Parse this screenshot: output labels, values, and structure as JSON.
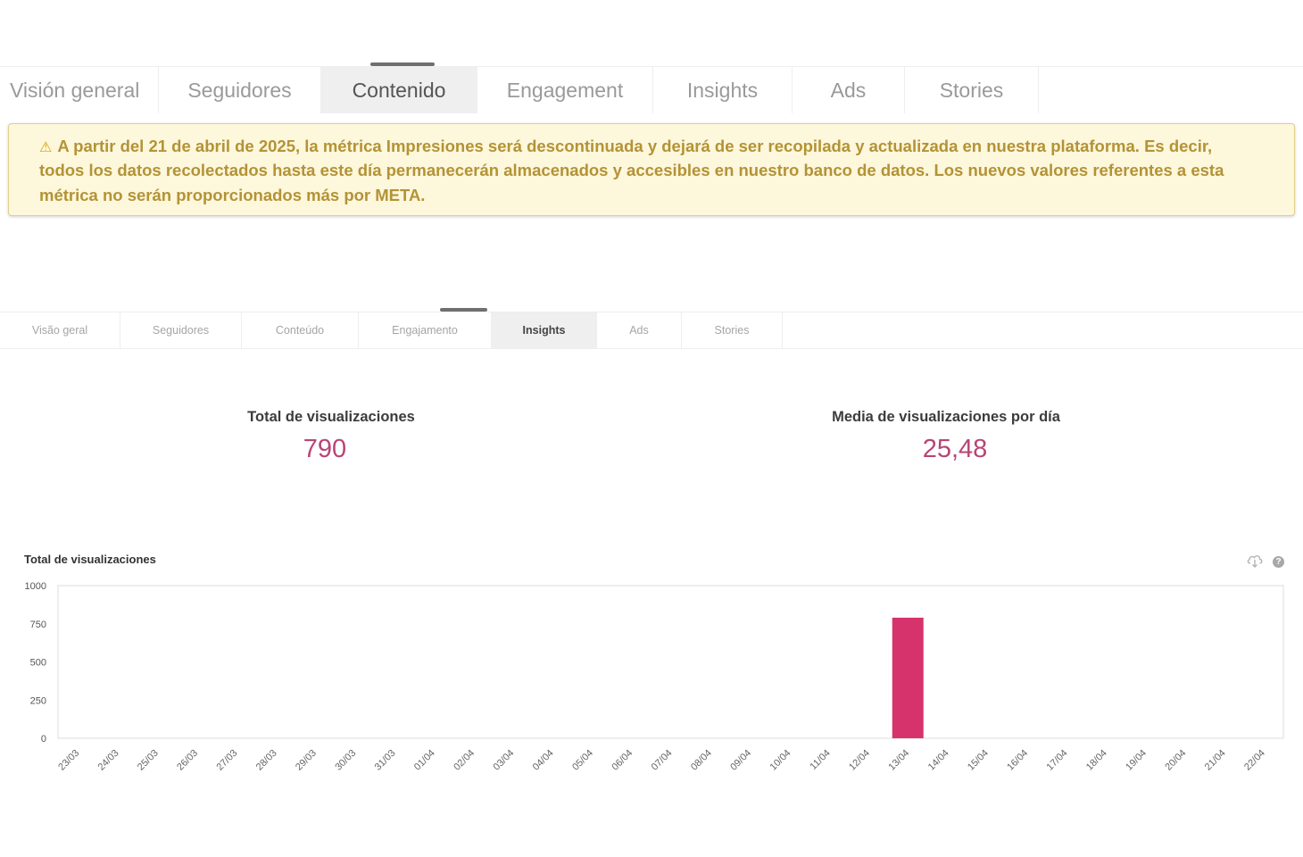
{
  "top_tabs": [
    {
      "label": "Visión general"
    },
    {
      "label": "Seguidores"
    },
    {
      "label": "Contenido",
      "active": true
    },
    {
      "label": "Engagement"
    },
    {
      "label": "Insights"
    },
    {
      "label": "Ads"
    },
    {
      "label": "Stories"
    }
  ],
  "warning": {
    "icon": "warning-icon",
    "line1": "A partir del 21 de abril de 2025, la métrica Impresiones será descontinuada y dejará de ser recopilada y actualizada en nuestra plataforma. Es decir,",
    "line2": "todos los datos recolectados hasta este día permanecerán almacenados y accesibles en nuestro banco de datos. Los nuevos valores referentes a esta",
    "line3": "métrica no serán proporcionados más por META."
  },
  "sub_tabs": [
    {
      "label": "Visão geral"
    },
    {
      "label": "Seguidores"
    },
    {
      "label": "Conteúdo"
    },
    {
      "label": "Engajamento"
    },
    {
      "label": "Insights",
      "active": true
    },
    {
      "label": "Ads"
    },
    {
      "label": "Stories"
    }
  ],
  "stats": {
    "total": {
      "label": "Total de visualizaciones",
      "value": "790"
    },
    "daily_avg": {
      "label": "Media de visualizaciones por día",
      "value": "25,48"
    }
  },
  "colors": {
    "accent": "#d6336c",
    "warning_text": "#b39336",
    "warning_bg": "#fdf7dc"
  },
  "icons": {
    "download": "cloud-download-icon",
    "help": "help-icon"
  },
  "chart_data": {
    "type": "bar",
    "title": "Total de visualizaciones",
    "categories": [
      "23/03",
      "24/03",
      "25/03",
      "26/03",
      "27/03",
      "28/03",
      "29/03",
      "30/03",
      "31/03",
      "01/04",
      "02/04",
      "03/04",
      "04/04",
      "05/04",
      "06/04",
      "07/04",
      "08/04",
      "09/04",
      "10/04",
      "11/04",
      "12/04",
      "13/04",
      "14/04",
      "15/04",
      "16/04",
      "17/04",
      "18/04",
      "19/04",
      "20/04",
      "21/04",
      "22/04"
    ],
    "values": [
      0,
      0,
      0,
      0,
      0,
      0,
      0,
      0,
      0,
      0,
      0,
      0,
      0,
      0,
      0,
      0,
      0,
      0,
      0,
      0,
      0,
      790,
      0,
      0,
      0,
      0,
      0,
      0,
      0,
      0,
      0
    ],
    "yticks": [
      "0",
      "250",
      "500",
      "750",
      "1000"
    ],
    "ylim": [
      0,
      1000
    ],
    "bar_color": "#d6336c",
    "grid": false
  }
}
